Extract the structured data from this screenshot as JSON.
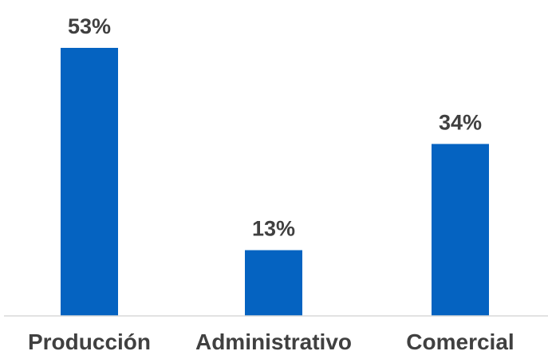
{
  "chart_data": {
    "type": "bar",
    "categories": [
      "Producción",
      "Administrativo",
      "Comercial"
    ],
    "values": [
      53,
      13,
      34
    ],
    "data_labels": [
      "53%",
      "13%",
      "34%"
    ],
    "title": "",
    "xlabel": "",
    "ylabel": "",
    "ylim": [
      0,
      53
    ],
    "grid": false,
    "legend": "none",
    "colors": {
      "bar": "#0563C1",
      "text": "#404040",
      "axis": "#D9D9D9"
    }
  }
}
